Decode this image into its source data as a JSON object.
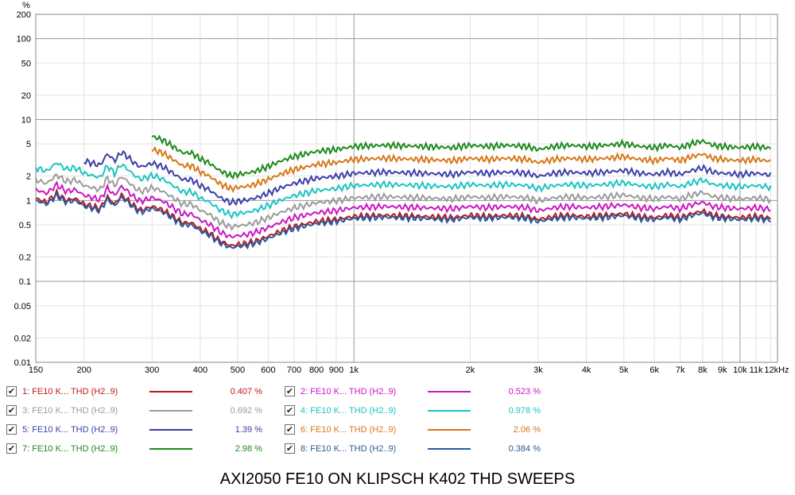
{
  "chart_data": {
    "type": "line",
    "title": "AXI2050 FE10 ON KLIPSCH K402 THD SWEEPS",
    "y_unit": "%",
    "y_scale": "log",
    "x_scale": "log",
    "xlim": [
      150,
      12500
    ],
    "ylim": [
      0.01,
      200
    ],
    "x_ticks": [
      {
        "v": 150,
        "label": "150"
      },
      {
        "v": 200,
        "label": "200"
      },
      {
        "v": 300,
        "label": "300"
      },
      {
        "v": 400,
        "label": "400"
      },
      {
        "v": 500,
        "label": "500"
      },
      {
        "v": 600,
        "label": "600"
      },
      {
        "v": 700,
        "label": "700"
      },
      {
        "v": 800,
        "label": "800"
      },
      {
        "v": 900,
        "label": "900"
      },
      {
        "v": 1000,
        "label": "1k"
      },
      {
        "v": 2000,
        "label": "2k"
      },
      {
        "v": 3000,
        "label": "3k"
      },
      {
        "v": 4000,
        "label": "4k"
      },
      {
        "v": 5000,
        "label": "5k"
      },
      {
        "v": 6000,
        "label": "6k"
      },
      {
        "v": 7000,
        "label": "7k"
      },
      {
        "v": 8000,
        "label": "8k"
      },
      {
        "v": 9000,
        "label": "9k"
      },
      {
        "v": 10000,
        "label": "10k"
      },
      {
        "v": 11000,
        "label": "11k"
      },
      {
        "v": 12000,
        "label": "12kHz"
      }
    ],
    "y_ticks": [
      {
        "v": 200,
        "label": "200"
      },
      {
        "v": 100,
        "label": "100"
      },
      {
        "v": 50,
        "label": "50"
      },
      {
        "v": 20,
        "label": "20"
      },
      {
        "v": 10,
        "label": "10"
      },
      {
        "v": 5,
        "label": "5"
      },
      {
        "v": 2,
        "label": "2"
      },
      {
        "v": 1,
        "label": "1"
      },
      {
        "v": 0.5,
        "label": "0.5"
      },
      {
        "v": 0.2,
        "label": "0.2"
      },
      {
        "v": 0.1,
        "label": "0.1"
      },
      {
        "v": 0.05,
        "label": "0.05"
      },
      {
        "v": 0.02,
        "label": "0.02"
      },
      {
        "v": 0.01,
        "label": "0.01"
      }
    ],
    "base_curve": {
      "x": [
        150,
        160,
        170,
        180,
        190,
        200,
        210,
        220,
        230,
        240,
        250,
        260,
        270,
        280,
        290,
        300,
        320,
        340,
        360,
        380,
        400,
        420,
        450,
        480,
        500,
        530,
        560,
        600,
        650,
        700,
        800,
        900,
        1000,
        1200,
        1500,
        1800,
        2000,
        2200,
        2500,
        2800,
        3000,
        3300,
        3600,
        4000,
        4500,
        5000,
        5500,
        6000,
        6500,
        7000,
        7500,
        8000,
        8500,
        9000,
        10000,
        11000,
        12000
      ],
      "y": [
        1.0,
        0.9,
        1.15,
        0.95,
        1.0,
        0.85,
        0.8,
        0.75,
        1.05,
        0.85,
        1.1,
        0.95,
        0.8,
        0.72,
        0.75,
        0.8,
        0.72,
        0.6,
        0.5,
        0.5,
        0.42,
        0.38,
        0.3,
        0.26,
        0.27,
        0.28,
        0.3,
        0.34,
        0.4,
        0.45,
        0.52,
        0.55,
        0.6,
        0.62,
        0.6,
        0.58,
        0.62,
        0.6,
        0.62,
        0.6,
        0.55,
        0.6,
        0.62,
        0.6,
        0.62,
        0.65,
        0.6,
        0.58,
        0.62,
        0.58,
        0.65,
        0.7,
        0.62,
        0.6,
        0.58,
        0.6,
        0.57
      ]
    },
    "series": [
      {
        "name": "1: FE10 K... THD (H2..9)",
        "color": "#c0171a",
        "value": "0.407 %",
        "scale": 1.06,
        "start": 150
      },
      {
        "name": "2: FE10 K... THD (H2..9)",
        "color": "#c917c2",
        "value": "0.523 %",
        "scale": 1.36,
        "start": 150
      },
      {
        "name": "3: FE10 K... THD (H2..9)",
        "color": "#9a9a9a",
        "value": "0.692 %",
        "scale": 1.8,
        "start": 150
      },
      {
        "name": "4: FE10 K... THD (H2..9)",
        "color": "#1cc3c3",
        "value": "0.978 %",
        "scale": 2.55,
        "start": 150
      },
      {
        "name": "5: FE10 K... THD (H2..9)",
        "color": "#3a3ea8",
        "value": "1.39 %",
        "scale": 3.62,
        "start": 200
      },
      {
        "name": "6: FE10 K... THD (H2..9)",
        "color": "#d6781a",
        "value": "2.06 %",
        "scale": 5.36,
        "start": 300
      },
      {
        "name": "7: FE10 K... THD (H2..9)",
        "color": "#1a8a1a",
        "value": "2.98 %",
        "scale": 7.76,
        "start": 300
      },
      {
        "name": "8: FE10 K... THD (H2..9)",
        "color": "#2a5a9a",
        "value": "0.384 %",
        "scale": 1.0,
        "start": 150
      }
    ]
  },
  "legend": {
    "check_glyph": "✔"
  },
  "caption": "AXI2050 FE10 ON KLIPSCH K402 THD SWEEPS"
}
